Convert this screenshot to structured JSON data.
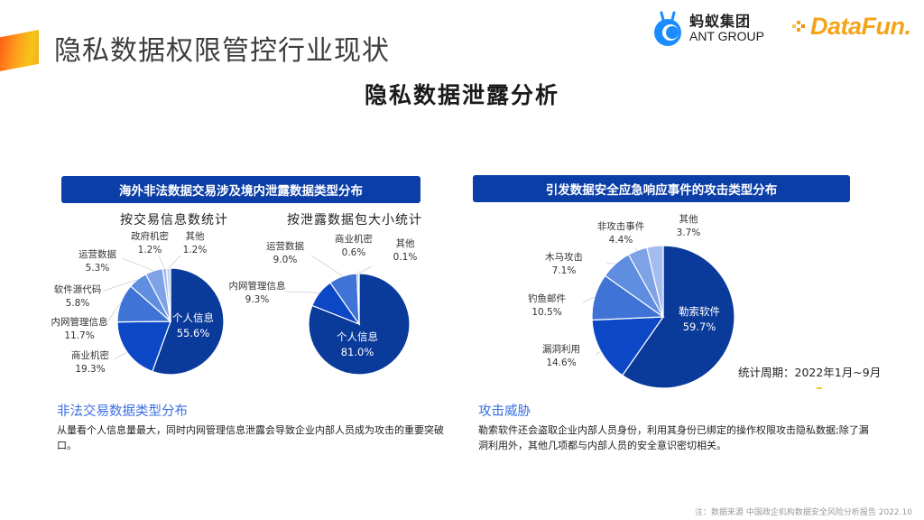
{
  "header": {
    "page_title": "隐私数据权限管控行业现状",
    "subtitle": "隐私数据泄露分析",
    "ant_logo_cn": "蚂蚁集团",
    "ant_logo_en": "ANT GROUP",
    "datafun_logo": "DataFun."
  },
  "left_section": {
    "bar_title": "海外非法数据交易涉及境内泄露数据类型分布",
    "note_title": "非法交易数据类型分布",
    "note_body": "从量看个人信息量最大，同时内网管理信息泄露会导致企业内部人员成为攻击的重要突破口。"
  },
  "right_section": {
    "bar_title": "引发数据安全应急响应事件的攻击类型分布",
    "period": "统计周期：2022年1月~9月",
    "note_title": "攻击威胁",
    "note_body": "勒索软件还会盗取企业内部人员身份，利用其身份已绑定的操作权限攻击隐私数据;除了漏洞利用外，其他几项都与内部人员的安全意识密切相关。"
  },
  "footnote": "注：数据来源 中国政企机构数据安全风险分析报告 2022.10",
  "colors": {
    "bar": "#0b3ea6",
    "slice_1": "#0a3a9a",
    "slice_2": "#0c47c6",
    "slice_3": "#3f73d6",
    "slice_4": "#5f8de0",
    "slice_5": "#7fa2e6",
    "slice_6": "#a3bdee",
    "slice_7": "#c2d3f4",
    "note_title": "#3a6fe0"
  },
  "chart_data": [
    {
      "type": "pie",
      "title": "按交易信息数统计",
      "categories": [
        "个人信息",
        "商业机密",
        "内网管理信息",
        "软件源代码",
        "运营数据",
        "政府机密",
        "其他"
      ],
      "values": [
        55.6,
        19.3,
        11.7,
        5.8,
        5.3,
        1.2,
        1.2
      ],
      "labels": [
        "55.6%",
        "19.3%",
        "11.7%",
        "5.8%",
        "5.3%",
        "1.2%",
        "1.2%"
      ],
      "unit": "%"
    },
    {
      "type": "pie",
      "title": "按泄露数据包大小统计",
      "categories": [
        "个人信息",
        "内网管理信息",
        "运营数据",
        "商业机密",
        "其他"
      ],
      "values": [
        81.0,
        9.3,
        9.0,
        0.6,
        0.1
      ],
      "labels": [
        "81.0%",
        "9.3%",
        "9.0%",
        "0.6%",
        "0.1%"
      ],
      "unit": "%"
    },
    {
      "type": "pie",
      "title": "引发数据安全应急响应事件的攻击类型分布",
      "categories": [
        "勒索软件",
        "漏洞利用",
        "钓鱼邮件",
        "木马攻击",
        "非攻击事件",
        "其他"
      ],
      "values": [
        59.7,
        14.6,
        10.5,
        7.1,
        4.4,
        3.7
      ],
      "labels": [
        "59.7%",
        "14.6%",
        "10.5%",
        "7.1%",
        "4.4%",
        "3.7%"
      ],
      "unit": "%",
      "note": "统计周期：2022年1月~9月"
    }
  ]
}
